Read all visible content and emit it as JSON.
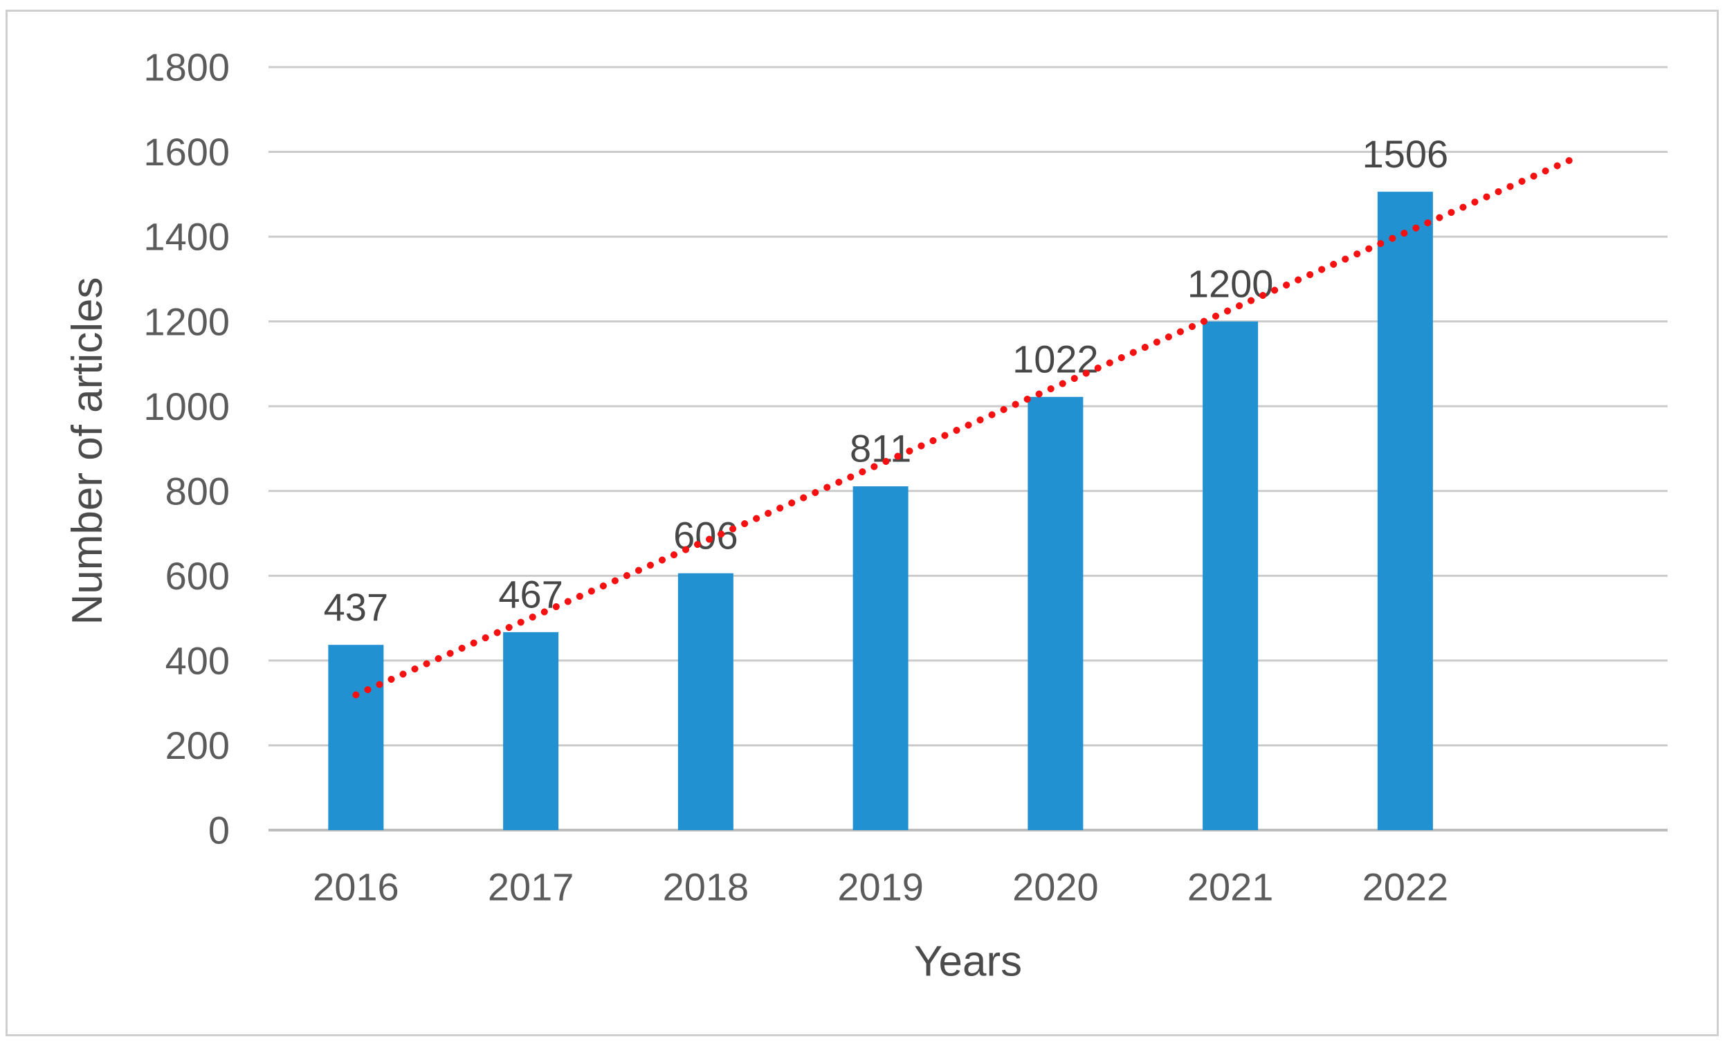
{
  "figure": {
    "border_color": "#cfcfcf",
    "background_color": "#ffffff"
  },
  "chart_data": {
    "type": "bar",
    "title": "",
    "categories": [
      "2016",
      "2017",
      "2018",
      "2019",
      "2020",
      "2021",
      "2022"
    ],
    "values": [
      437,
      467,
      606,
      811,
      1022,
      1200,
      1506
    ],
    "data_labels": [
      "437",
      "467",
      "606",
      "811",
      "1022",
      "1200",
      "1506"
    ],
    "xlabel": "Years",
    "ylabel": "Number of articles",
    "y_ticks": [
      0,
      200,
      400,
      600,
      800,
      1000,
      1200,
      1400,
      1600,
      1800
    ],
    "ylim": [
      0,
      1800
    ],
    "grid": true,
    "legend_position": "none",
    "bar_color": "#2191d1",
    "gridline_color": "#cbcbcb",
    "axis_line_color": "#bdbdbd",
    "trendline": {
      "type": "linear",
      "style": "dotted",
      "color": "#f51111",
      "start_value": 319,
      "end_value": 1591,
      "forecast_periods_forward": 1
    }
  }
}
